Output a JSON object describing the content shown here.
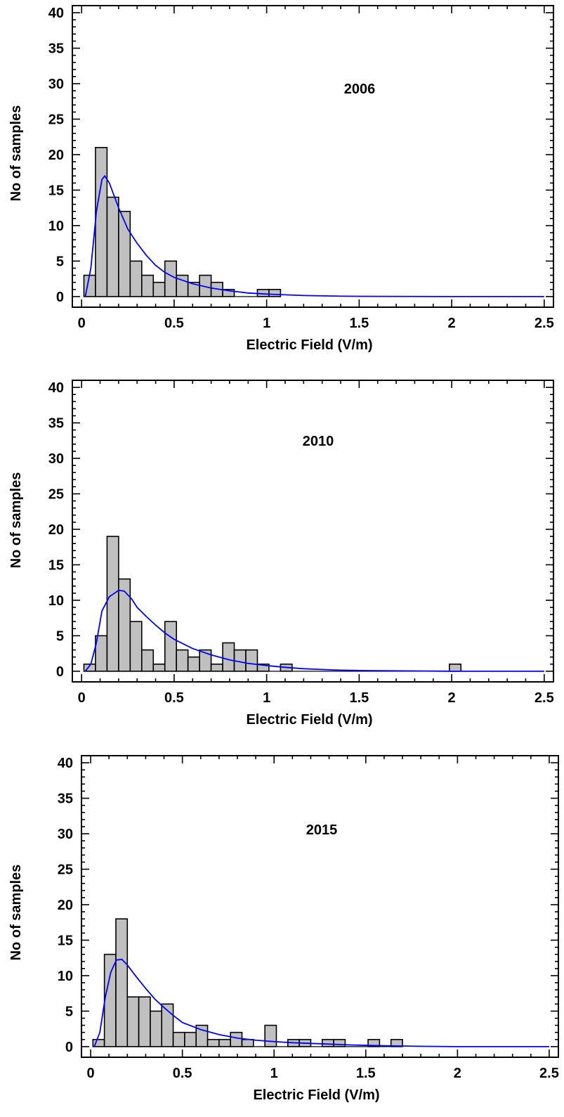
{
  "chart_data": [
    {
      "type": "bar",
      "title": "2006",
      "xlabel": "Electric Field (V/m)",
      "ylabel": "No of samples",
      "xlim": [
        -0.05,
        2.55
      ],
      "ylim": [
        -1.5,
        41
      ],
      "xticks": [
        "0",
        "0.5",
        "1",
        "1.5",
        "2",
        "2.5"
      ],
      "yticks": [
        "0",
        "5",
        "10",
        "15",
        "20",
        "25",
        "30",
        "35",
        "40"
      ],
      "bin_width": 0.0625,
      "bins": [
        {
          "x0": 0.0125,
          "count": 3
        },
        {
          "x0": 0.075,
          "count": 21
        },
        {
          "x0": 0.1375,
          "count": 14
        },
        {
          "x0": 0.2,
          "count": 12
        },
        {
          "x0": 0.2625,
          "count": 5
        },
        {
          "x0": 0.325,
          "count": 3
        },
        {
          "x0": 0.3875,
          "count": 2
        },
        {
          "x0": 0.45,
          "count": 5
        },
        {
          "x0": 0.5125,
          "count": 3
        },
        {
          "x0": 0.575,
          "count": 2
        },
        {
          "x0": 0.6375,
          "count": 3
        },
        {
          "x0": 0.7,
          "count": 2
        },
        {
          "x0": 0.7625,
          "count": 1
        },
        {
          "x0": 0.825,
          "count": 0
        },
        {
          "x0": 0.8875,
          "count": 0
        },
        {
          "x0": 0.95,
          "count": 1
        },
        {
          "x0": 1.0125,
          "count": 1
        }
      ],
      "fit_line": {
        "color": "#0000ff",
        "points": [
          [
            0.02,
            0
          ],
          [
            0.05,
            4
          ],
          [
            0.08,
            12
          ],
          [
            0.11,
            16.5
          ],
          [
            0.125,
            17
          ],
          [
            0.15,
            16
          ],
          [
            0.2,
            12.5
          ],
          [
            0.25,
            9.5
          ],
          [
            0.3,
            7.5
          ],
          [
            0.35,
            5.8
          ],
          [
            0.4,
            4.4
          ],
          [
            0.45,
            3.4
          ],
          [
            0.5,
            2.7
          ],
          [
            0.6,
            1.8
          ],
          [
            0.7,
            1.2
          ],
          [
            0.8,
            0.8
          ],
          [
            0.9,
            0.5
          ],
          [
            1.0,
            0.35
          ],
          [
            1.1,
            0.25
          ],
          [
            1.2,
            0.15
          ],
          [
            1.3,
            0.1
          ],
          [
            1.42,
            0.05
          ],
          [
            1.6,
            0.02
          ],
          [
            2.0,
            0
          ],
          [
            2.5,
            0
          ]
        ]
      }
    },
    {
      "type": "bar",
      "title": "2010",
      "xlabel": "Electric Field (V/m)",
      "ylabel": "No of samples",
      "xlim": [
        -0.05,
        2.55
      ],
      "ylim": [
        -1.5,
        41
      ],
      "xticks": [
        "0",
        "0.5",
        "1",
        "1.5",
        "2",
        "2.5"
      ],
      "yticks": [
        "0",
        "5",
        "10",
        "15",
        "20",
        "25",
        "30",
        "35",
        "40"
      ],
      "bin_width": 0.0625,
      "bins": [
        {
          "x0": 0.0125,
          "count": 1
        },
        {
          "x0": 0.075,
          "count": 5
        },
        {
          "x0": 0.1375,
          "count": 19
        },
        {
          "x0": 0.2,
          "count": 13
        },
        {
          "x0": 0.2625,
          "count": 7
        },
        {
          "x0": 0.325,
          "count": 3
        },
        {
          "x0": 0.3875,
          "count": 1
        },
        {
          "x0": 0.45,
          "count": 7
        },
        {
          "x0": 0.5125,
          "count": 3
        },
        {
          "x0": 0.575,
          "count": 2
        },
        {
          "x0": 0.6375,
          "count": 3
        },
        {
          "x0": 0.7,
          "count": 1
        },
        {
          "x0": 0.7625,
          "count": 4
        },
        {
          "x0": 0.825,
          "count": 3
        },
        {
          "x0": 0.8875,
          "count": 3
        },
        {
          "x0": 0.95,
          "count": 1
        },
        {
          "x0": 1.0125,
          "count": 0
        },
        {
          "x0": 1.075,
          "count": 1
        },
        {
          "x0": 1.9875,
          "count": 1
        }
      ],
      "fit_line": {
        "color": "#0000ff",
        "points": [
          [
            0.02,
            0
          ],
          [
            0.05,
            1
          ],
          [
            0.08,
            4
          ],
          [
            0.11,
            8.5
          ],
          [
            0.15,
            10.5
          ],
          [
            0.2,
            11.4
          ],
          [
            0.23,
            11.3
          ],
          [
            0.27,
            10.2
          ],
          [
            0.3,
            9
          ],
          [
            0.35,
            7.7
          ],
          [
            0.4,
            6.5
          ],
          [
            0.45,
            5.4
          ],
          [
            0.5,
            4.5
          ],
          [
            0.6,
            3.2
          ],
          [
            0.7,
            2.3
          ],
          [
            0.8,
            1.6
          ],
          [
            0.9,
            1.1
          ],
          [
            1.0,
            0.8
          ],
          [
            1.1,
            0.55
          ],
          [
            1.2,
            0.35
          ],
          [
            1.3,
            0.25
          ],
          [
            1.4,
            0.15
          ],
          [
            1.5,
            0.1
          ],
          [
            1.74,
            0.05
          ],
          [
            2.0,
            0
          ],
          [
            2.5,
            0
          ]
        ]
      }
    },
    {
      "type": "bar",
      "title": "2015",
      "xlabel": "Electric Field (V/m)",
      "ylabel": "No of samples",
      "xlim": [
        -0.05,
        2.55
      ],
      "ylim": [
        -1.5,
        41
      ],
      "xticks": [
        "0",
        "0.5",
        "1",
        "1.5",
        "2",
        "2.5"
      ],
      "yticks": [
        "0",
        "5",
        "10",
        "15",
        "20",
        "25",
        "30",
        "35",
        "40"
      ],
      "bin_width": 0.0625,
      "bins": [
        {
          "x0": 0.0125,
          "count": 1
        },
        {
          "x0": 0.075,
          "count": 13
        },
        {
          "x0": 0.1375,
          "count": 18
        },
        {
          "x0": 0.2,
          "count": 7
        },
        {
          "x0": 0.2625,
          "count": 7
        },
        {
          "x0": 0.325,
          "count": 5
        },
        {
          "x0": 0.3875,
          "count": 6
        },
        {
          "x0": 0.45,
          "count": 2
        },
        {
          "x0": 0.5125,
          "count": 2
        },
        {
          "x0": 0.575,
          "count": 3
        },
        {
          "x0": 0.6375,
          "count": 1
        },
        {
          "x0": 0.7,
          "count": 1
        },
        {
          "x0": 0.7625,
          "count": 2
        },
        {
          "x0": 0.825,
          "count": 1
        },
        {
          "x0": 0.8875,
          "count": 0
        },
        {
          "x0": 0.95,
          "count": 3
        },
        {
          "x0": 1.0125,
          "count": 0
        },
        {
          "x0": 1.075,
          "count": 1
        },
        {
          "x0": 1.1375,
          "count": 1
        },
        {
          "x0": 1.2625,
          "count": 1
        },
        {
          "x0": 1.325,
          "count": 1
        },
        {
          "x0": 1.5125,
          "count": 1
        },
        {
          "x0": 1.6375,
          "count": 1
        }
      ],
      "fit_line": {
        "color": "#0000ff",
        "points": [
          [
            0.02,
            0
          ],
          [
            0.05,
            2
          ],
          [
            0.08,
            7
          ],
          [
            0.11,
            10.5
          ],
          [
            0.14,
            12.2
          ],
          [
            0.17,
            12.3
          ],
          [
            0.2,
            11.5
          ],
          [
            0.25,
            9.8
          ],
          [
            0.3,
            8.2
          ],
          [
            0.35,
            6.7
          ],
          [
            0.4,
            5.5
          ],
          [
            0.45,
            4.4
          ],
          [
            0.5,
            3.4
          ],
          [
            0.6,
            2.4
          ],
          [
            0.7,
            1.7
          ],
          [
            0.8,
            1.2
          ],
          [
            0.9,
            0.9
          ],
          [
            1.0,
            0.7
          ],
          [
            1.1,
            0.55
          ],
          [
            1.2,
            0.45
          ],
          [
            1.3,
            0.35
          ],
          [
            1.4,
            0.25
          ],
          [
            1.5,
            0.18
          ],
          [
            1.6,
            0.12
          ],
          [
            1.78,
            0.05
          ],
          [
            2.0,
            0
          ],
          [
            2.5,
            0
          ]
        ]
      }
    }
  ]
}
